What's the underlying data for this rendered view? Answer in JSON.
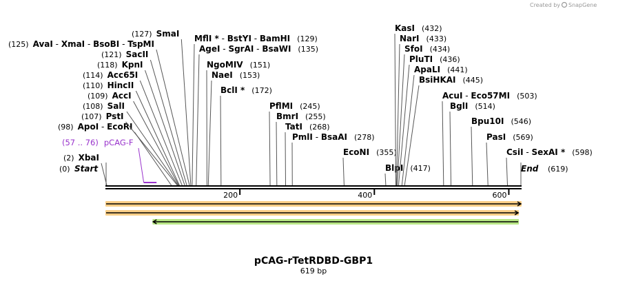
{
  "watermark": {
    "prefix": "Created by",
    "brand": "SnapGene"
  },
  "plasmid": {
    "name": "pCAG-rTetRDBD-GBP1",
    "length_label": "619 bp",
    "length": 619
  },
  "ruler": {
    "ticks": [
      200,
      400,
      600
    ]
  },
  "start_label": {
    "pos": "(0)",
    "name": "Start"
  },
  "end_label": {
    "name": "End",
    "pos": "(619)"
  },
  "primer": {
    "range": "(57 .. 76)",
    "name": "pCAG-F",
    "start": 57,
    "end": 76,
    "color": "#9933cc"
  },
  "features": [
    {
      "start": 0,
      "end": 619,
      "direction": "forward",
      "color": "#f5a623",
      "track": 0
    },
    {
      "start": 0,
      "end": 615,
      "direction": "forward",
      "color": "#f5a623",
      "track": 1
    },
    {
      "start": 70,
      "end": 615,
      "direction": "reverse",
      "color": "#7ed321",
      "track": 2
    }
  ],
  "sites": [
    {
      "pos": 2,
      "cut": 2,
      "pos_label": "(2)",
      "names": [
        "XbaI"
      ]
    },
    {
      "pos": 98,
      "cut": 98,
      "pos_label": "(98)",
      "names": [
        "ApoI",
        "EcoRI"
      ]
    },
    {
      "pos": 107,
      "cut": 107,
      "pos_label": "(107)",
      "names": [
        "PstI"
      ]
    },
    {
      "pos": 108,
      "cut": 108,
      "pos_label": "(108)",
      "names": [
        "SalI"
      ]
    },
    {
      "pos": 109,
      "cut": 109,
      "pos_label": "(109)",
      "names": [
        "AccI"
      ]
    },
    {
      "pos": 110,
      "cut": 110,
      "pos_label": "(110)",
      "names": [
        "HincII"
      ]
    },
    {
      "pos": 114,
      "cut": 114,
      "pos_label": "(114)",
      "names": [
        "Acc65I"
      ]
    },
    {
      "pos": 118,
      "cut": 118,
      "pos_label": "(118)",
      "names": [
        "KpnI"
      ]
    },
    {
      "pos": 121,
      "cut": 121,
      "pos_label": "(121)",
      "names": [
        "SacII"
      ]
    },
    {
      "pos": 125,
      "cut": 125,
      "pos_label": "(125)",
      "names": [
        "AvaI",
        "XmaI",
        "BsoBI",
        "TspMI"
      ],
      "lead": "left"
    },
    {
      "pos": 127,
      "cut": 127,
      "pos_label": "(127)",
      "names": [
        "SmaI"
      ]
    },
    {
      "pos": 129,
      "cut": 129,
      "pos_label": "(129)",
      "names": [
        "MflI *",
        "BstYI",
        "BamHI"
      ],
      "after": true
    },
    {
      "pos": 135,
      "cut": 135,
      "pos_label": "(135)",
      "names": [
        "AgeI",
        "SgrAI",
        "BsaWI"
      ],
      "after": true
    },
    {
      "pos": 151,
      "cut": 151,
      "pos_label": "(151)",
      "names": [
        "NgoMIV"
      ],
      "after": true
    },
    {
      "pos": 153,
      "cut": 153,
      "pos_label": "(153)",
      "names": [
        "NaeI"
      ],
      "after": true
    },
    {
      "pos": 172,
      "cut": 172,
      "pos_label": "(172)",
      "names": [
        "BclI *"
      ],
      "after": true
    },
    {
      "pos": 245,
      "cut": 245,
      "pos_label": "(245)",
      "names": [
        "PflMI"
      ],
      "after": true
    },
    {
      "pos": 255,
      "cut": 255,
      "pos_label": "(255)",
      "names": [
        "BmrI"
      ],
      "after": true
    },
    {
      "pos": 268,
      "cut": 268,
      "pos_label": "(268)",
      "names": [
        "TatI"
      ],
      "after": true
    },
    {
      "pos": 278,
      "cut": 278,
      "pos_label": "(278)",
      "names": [
        "PmlI",
        "BsaAI"
      ],
      "after": true
    },
    {
      "pos": 355,
      "cut": 355,
      "pos_label": "(355)",
      "names": [
        "EcoNI"
      ],
      "after": true
    },
    {
      "pos": 417,
      "cut": 417,
      "pos_label": "(417)",
      "names": [
        "BlpI"
      ],
      "after": true
    },
    {
      "pos": 432,
      "cut": 432,
      "pos_label": "(432)",
      "names": [
        "KasI"
      ],
      "after": true
    },
    {
      "pos": 433,
      "cut": 433,
      "pos_label": "(433)",
      "names": [
        "NarI"
      ],
      "after": true
    },
    {
      "pos": 434,
      "cut": 434,
      "pos_label": "(434)",
      "names": [
        "SfoI"
      ],
      "after": true
    },
    {
      "pos": 436,
      "cut": 436,
      "pos_label": "(436)",
      "names": [
        "PluTI"
      ],
      "after": true
    },
    {
      "pos": 441,
      "cut": 441,
      "pos_label": "(441)",
      "names": [
        "ApaLI"
      ],
      "after": true
    },
    {
      "pos": 445,
      "cut": 445,
      "pos_label": "(445)",
      "names": [
        "BsiHKAI"
      ],
      "after": true
    },
    {
      "pos": 503,
      "cut": 503,
      "pos_label": "(503)",
      "names": [
        "AcuI",
        "Eco57MI"
      ],
      "after": true
    },
    {
      "pos": 514,
      "cut": 514,
      "pos_label": "(514)",
      "names": [
        "BglI"
      ],
      "after": true
    },
    {
      "pos": 546,
      "cut": 546,
      "pos_label": "(546)",
      "names": [
        "Bpu10I"
      ],
      "after": true
    },
    {
      "pos": 569,
      "cut": 569,
      "pos_label": "(569)",
      "names": [
        "PasI"
      ],
      "after": true
    },
    {
      "pos": 598,
      "cut": 598,
      "pos_label": "(598)",
      "names": [
        "CsiI",
        "SexAI *"
      ],
      "after": true
    }
  ]
}
